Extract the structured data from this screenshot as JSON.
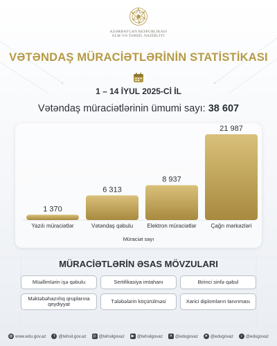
{
  "header": {
    "ministry_line1": "AZƏRBAYCAN RESPUBLİKASI",
    "ministry_line2": "ELM VƏ TƏHSİL NAZİRLİYİ"
  },
  "title": "VƏTƏNDAŞ MÜRACİƏTLƏRİNİN STATİSTİKASI",
  "date": "1 – 14 İYUL 2025-Cİ İL",
  "total": {
    "label": "Vətəndaş müraciətlərinin ümumi sayı:",
    "value": "38 607"
  },
  "colors": {
    "accent": "#b59a45",
    "bar_dark": "#a88a3f",
    "bar_light": "#d9c07a"
  },
  "chart_data": {
    "type": "bar",
    "categories": [
      "Yazılı müraciətlər",
      "Vətəndaş qəbulu",
      "Elektron müraciətlər",
      "Çağrı mərkəzləri"
    ],
    "values": [
      1370,
      6313,
      8937,
      21987
    ],
    "value_labels": [
      "1 370",
      "6 313",
      "8 937",
      "21 987"
    ],
    "title": "",
    "xlabel": "Müraciət sayı",
    "ylabel": "",
    "ylim": [
      0,
      21987
    ],
    "grid": false
  },
  "topics": {
    "title": "MÜRACİƏTLƏRİN ƏSAS MÖVZULARI",
    "items": [
      "Müəllimlərin işə qəbulu",
      "Sertifikasiya imtahanı",
      "Birinci sinfə qəbul",
      "Məktəbəhazırlıq qruplarına qeydiyyat",
      "Tələbələrin köçürülməsi",
      "Xarici diplomların tanınması"
    ]
  },
  "footer": {
    "website": "www.edu.gov.az",
    "handles": [
      "@tehsil.gov.az",
      "@tehsilgovaz",
      "@tehsilgovaz",
      "@edugovaz",
      "@edugovaz",
      "@edugovaz"
    ],
    "icons": [
      "globe-icon",
      "facebook-icon",
      "instagram-icon",
      "youtube-icon",
      "x-icon",
      "telegram-icon",
      "tiktok-icon"
    ]
  }
}
